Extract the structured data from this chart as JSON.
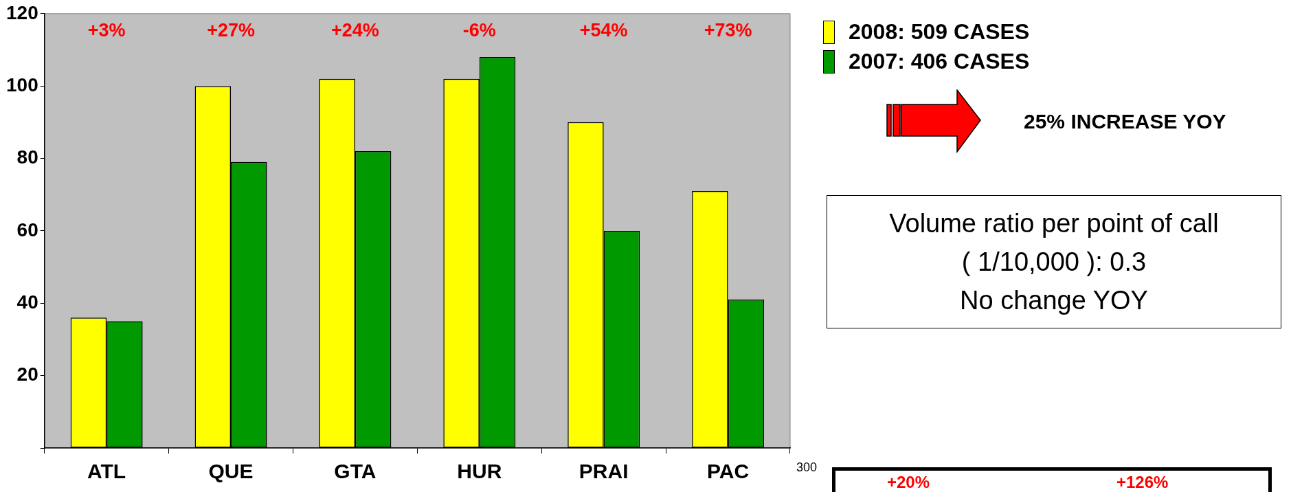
{
  "chart_data": [
    {
      "type": "bar",
      "categories": [
        "ATL",
        "QUE",
        "GTA",
        "HUR",
        "PRAI",
        "PAC"
      ],
      "series": [
        {
          "name": "2008: 509 CASES",
          "color": "#ffff00",
          "values": [
            36,
            100,
            102,
            102,
            90,
            71
          ]
        },
        {
          "name": "2007: 406 CASES",
          "color": "#009900",
          "values": [
            35,
            79,
            82,
            108,
            60,
            41
          ]
        }
      ],
      "ylim": [
        0,
        120
      ],
      "yticks": [
        {
          "value": 0,
          "label": null
        },
        20,
        40,
        60,
        80,
        100,
        120
      ],
      "grid": false,
      "legend": "top right",
      "annotations": [
        "+3%",
        "+27%",
        "+24%",
        "-6%",
        "+54%",
        "+73%",
        "25% INCREASE YOY",
        "Volume ratio per point of call\n( 1/10,000 ): 0.3\nNo change YOY"
      ]
    },
    {
      "type": "other",
      "annotations": [
        "300",
        "+20%",
        "+126%"
      ]
    }
  ]
}
